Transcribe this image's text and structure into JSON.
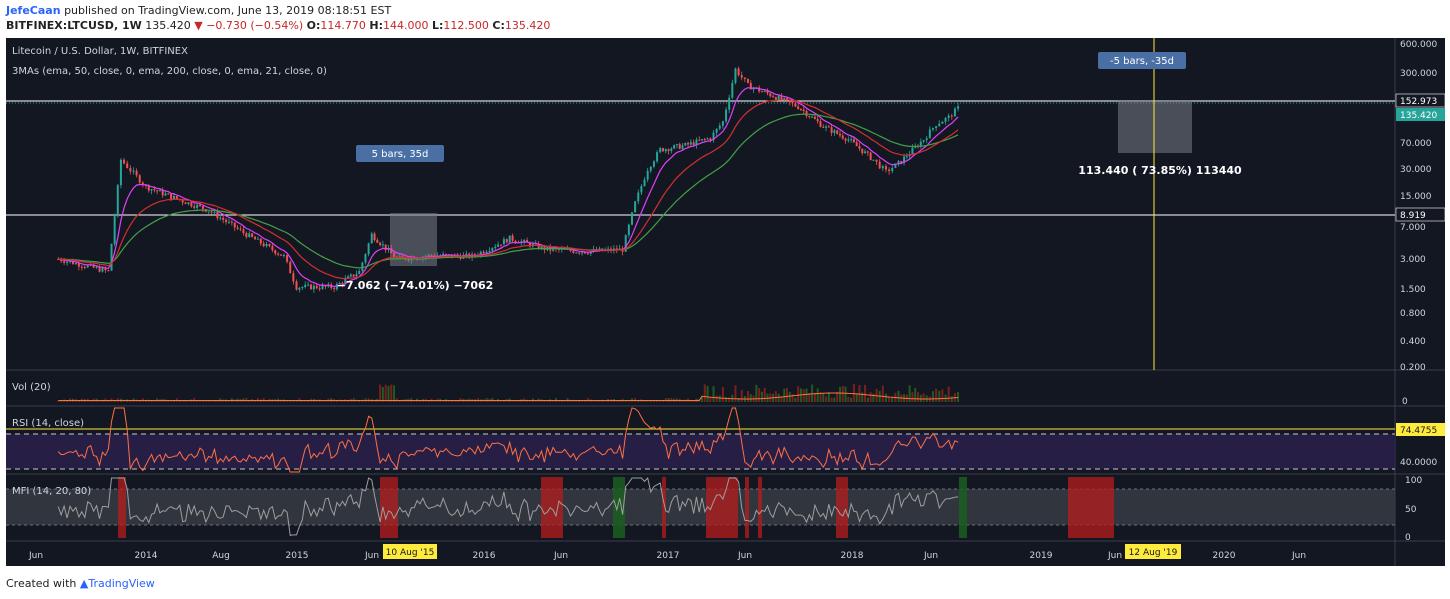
{
  "header": {
    "author": "JefeCaan",
    "published": "published on TradingView.com, June 13, 2019 08:18:51 EST",
    "symbol": "BITFINEX:LTCUSD, 1W",
    "price": "135.420",
    "change": "▼ −0.730 (−0.54%)",
    "o_label": "O:",
    "o_val": "114.770",
    "h_label": "H:",
    "h_val": "144.000",
    "l_label": "L:",
    "l_val": "112.500",
    "c_label": "C:",
    "c_val": "135.420"
  },
  "footer": {
    "created_with": "Created with",
    "brand": "TradingView"
  },
  "colors": {
    "background": "#131722",
    "up": "#26a69a",
    "down": "#ef5350",
    "ema50": "#e040fb",
    "ema200": "#43a047",
    "ema21": "#d32f2f",
    "rsi_line": "#ff7043",
    "mfi_line": "#9e9e9e",
    "marker": "#ffeb3b",
    "box": "#787b86",
    "label_bg": "#4a6fa5"
  },
  "chart_data": [
    {
      "type": "candlestick",
      "title": "Litecoin / U.S. Dollar, 1W, BITFINEX",
      "subtitle": "3MAs (ema, 50, close, 0, ema, 200, close, 0, ema, 21, close, 0)",
      "x_tick_labels": [
        "Jun",
        "2014",
        "Aug",
        "2015",
        "Jun",
        "2016",
        "Jun",
        "2017",
        "Jun",
        "2018",
        "Jun",
        "2019",
        "Jun",
        "2020",
        "Jun"
      ],
      "y_scale": "log",
      "y_tick_labels": [
        "600.000",
        "300.000",
        "70.000",
        "30.000",
        "15.000",
        "7.000",
        "3.000",
        "1.500",
        "0.800",
        "0.400",
        "0.200"
      ],
      "price_lines": [
        {
          "value": "152.973",
          "style": "dotted"
        },
        {
          "value": "135.420",
          "style": "last-price"
        },
        {
          "value": "8.919",
          "style": "solid"
        }
      ],
      "approx_price_path": [
        {
          "t": "2013-06",
          "p": 3.0
        },
        {
          "t": "2013-10",
          "p": 2.2
        },
        {
          "t": "2013-11",
          "p": 35
        },
        {
          "t": "2013-12",
          "p": 25
        },
        {
          "t": "2014-01",
          "p": 18
        },
        {
          "t": "2014-03",
          "p": 14
        },
        {
          "t": "2014-06",
          "p": 10
        },
        {
          "t": "2014-09",
          "p": 5.5
        },
        {
          "t": "2014-12",
          "p": 3.2
        },
        {
          "t": "2015-01",
          "p": 1.5
        },
        {
          "t": "2015-04",
          "p": 1.5
        },
        {
          "t": "2015-06",
          "p": 2.2
        },
        {
          "t": "2015-07",
          "p": 5.5
        },
        {
          "t": "2015-09",
          "p": 3.0
        },
        {
          "t": "2015-12",
          "p": 3.3
        },
        {
          "t": "2016-03",
          "p": 3.2
        },
        {
          "t": "2016-06",
          "p": 5.0
        },
        {
          "t": "2016-09",
          "p": 3.8
        },
        {
          "t": "2016-12",
          "p": 3.6
        },
        {
          "t": "2017-03",
          "p": 3.8
        },
        {
          "t": "2017-04",
          "p": 12
        },
        {
          "t": "2017-05",
          "p": 28
        },
        {
          "t": "2017-06",
          "p": 45
        },
        {
          "t": "2017-08",
          "p": 50
        },
        {
          "t": "2017-10",
          "p": 60
        },
        {
          "t": "2017-11",
          "p": 90
        },
        {
          "t": "2017-12",
          "p": 330
        },
        {
          "t": "2018-01",
          "p": 220
        },
        {
          "t": "2018-03",
          "p": 170
        },
        {
          "t": "2018-05",
          "p": 130
        },
        {
          "t": "2018-07",
          "p": 80
        },
        {
          "t": "2018-09",
          "p": 58
        },
        {
          "t": "2018-11",
          "p": 35
        },
        {
          "t": "2018-12",
          "p": 26
        },
        {
          "t": "2019-01",
          "p": 32
        },
        {
          "t": "2019-03",
          "p": 58
        },
        {
          "t": "2019-04",
          "p": 85
        },
        {
          "t": "2019-05",
          "p": 100
        },
        {
          "t": "2019-06",
          "p": 135
        }
      ],
      "annotations": [
        {
          "text": "5 bars,  35d",
          "kind": "range-label"
        },
        {
          "text": "−7.062 (−74.01%) −7062",
          "kind": "measure"
        },
        {
          "text": "-5 bars, -35d",
          "kind": "range-label"
        },
        {
          "text": "113.440 (  73.85%)    113440",
          "kind": "measure"
        }
      ],
      "markers": [
        "10 Aug '15",
        "12 Aug '19"
      ]
    },
    {
      "type": "bar",
      "title": "Vol (20)",
      "y_tick_labels": [
        "0"
      ]
    },
    {
      "type": "line",
      "title": "RSI (14, close)",
      "current_value": "74.4755",
      "y_tick_labels": [
        "40.0000"
      ]
    },
    {
      "type": "line",
      "title": "MFI (14, 20, 80)",
      "y_tick_labels": [
        "100",
        "50",
        "0"
      ]
    }
  ]
}
